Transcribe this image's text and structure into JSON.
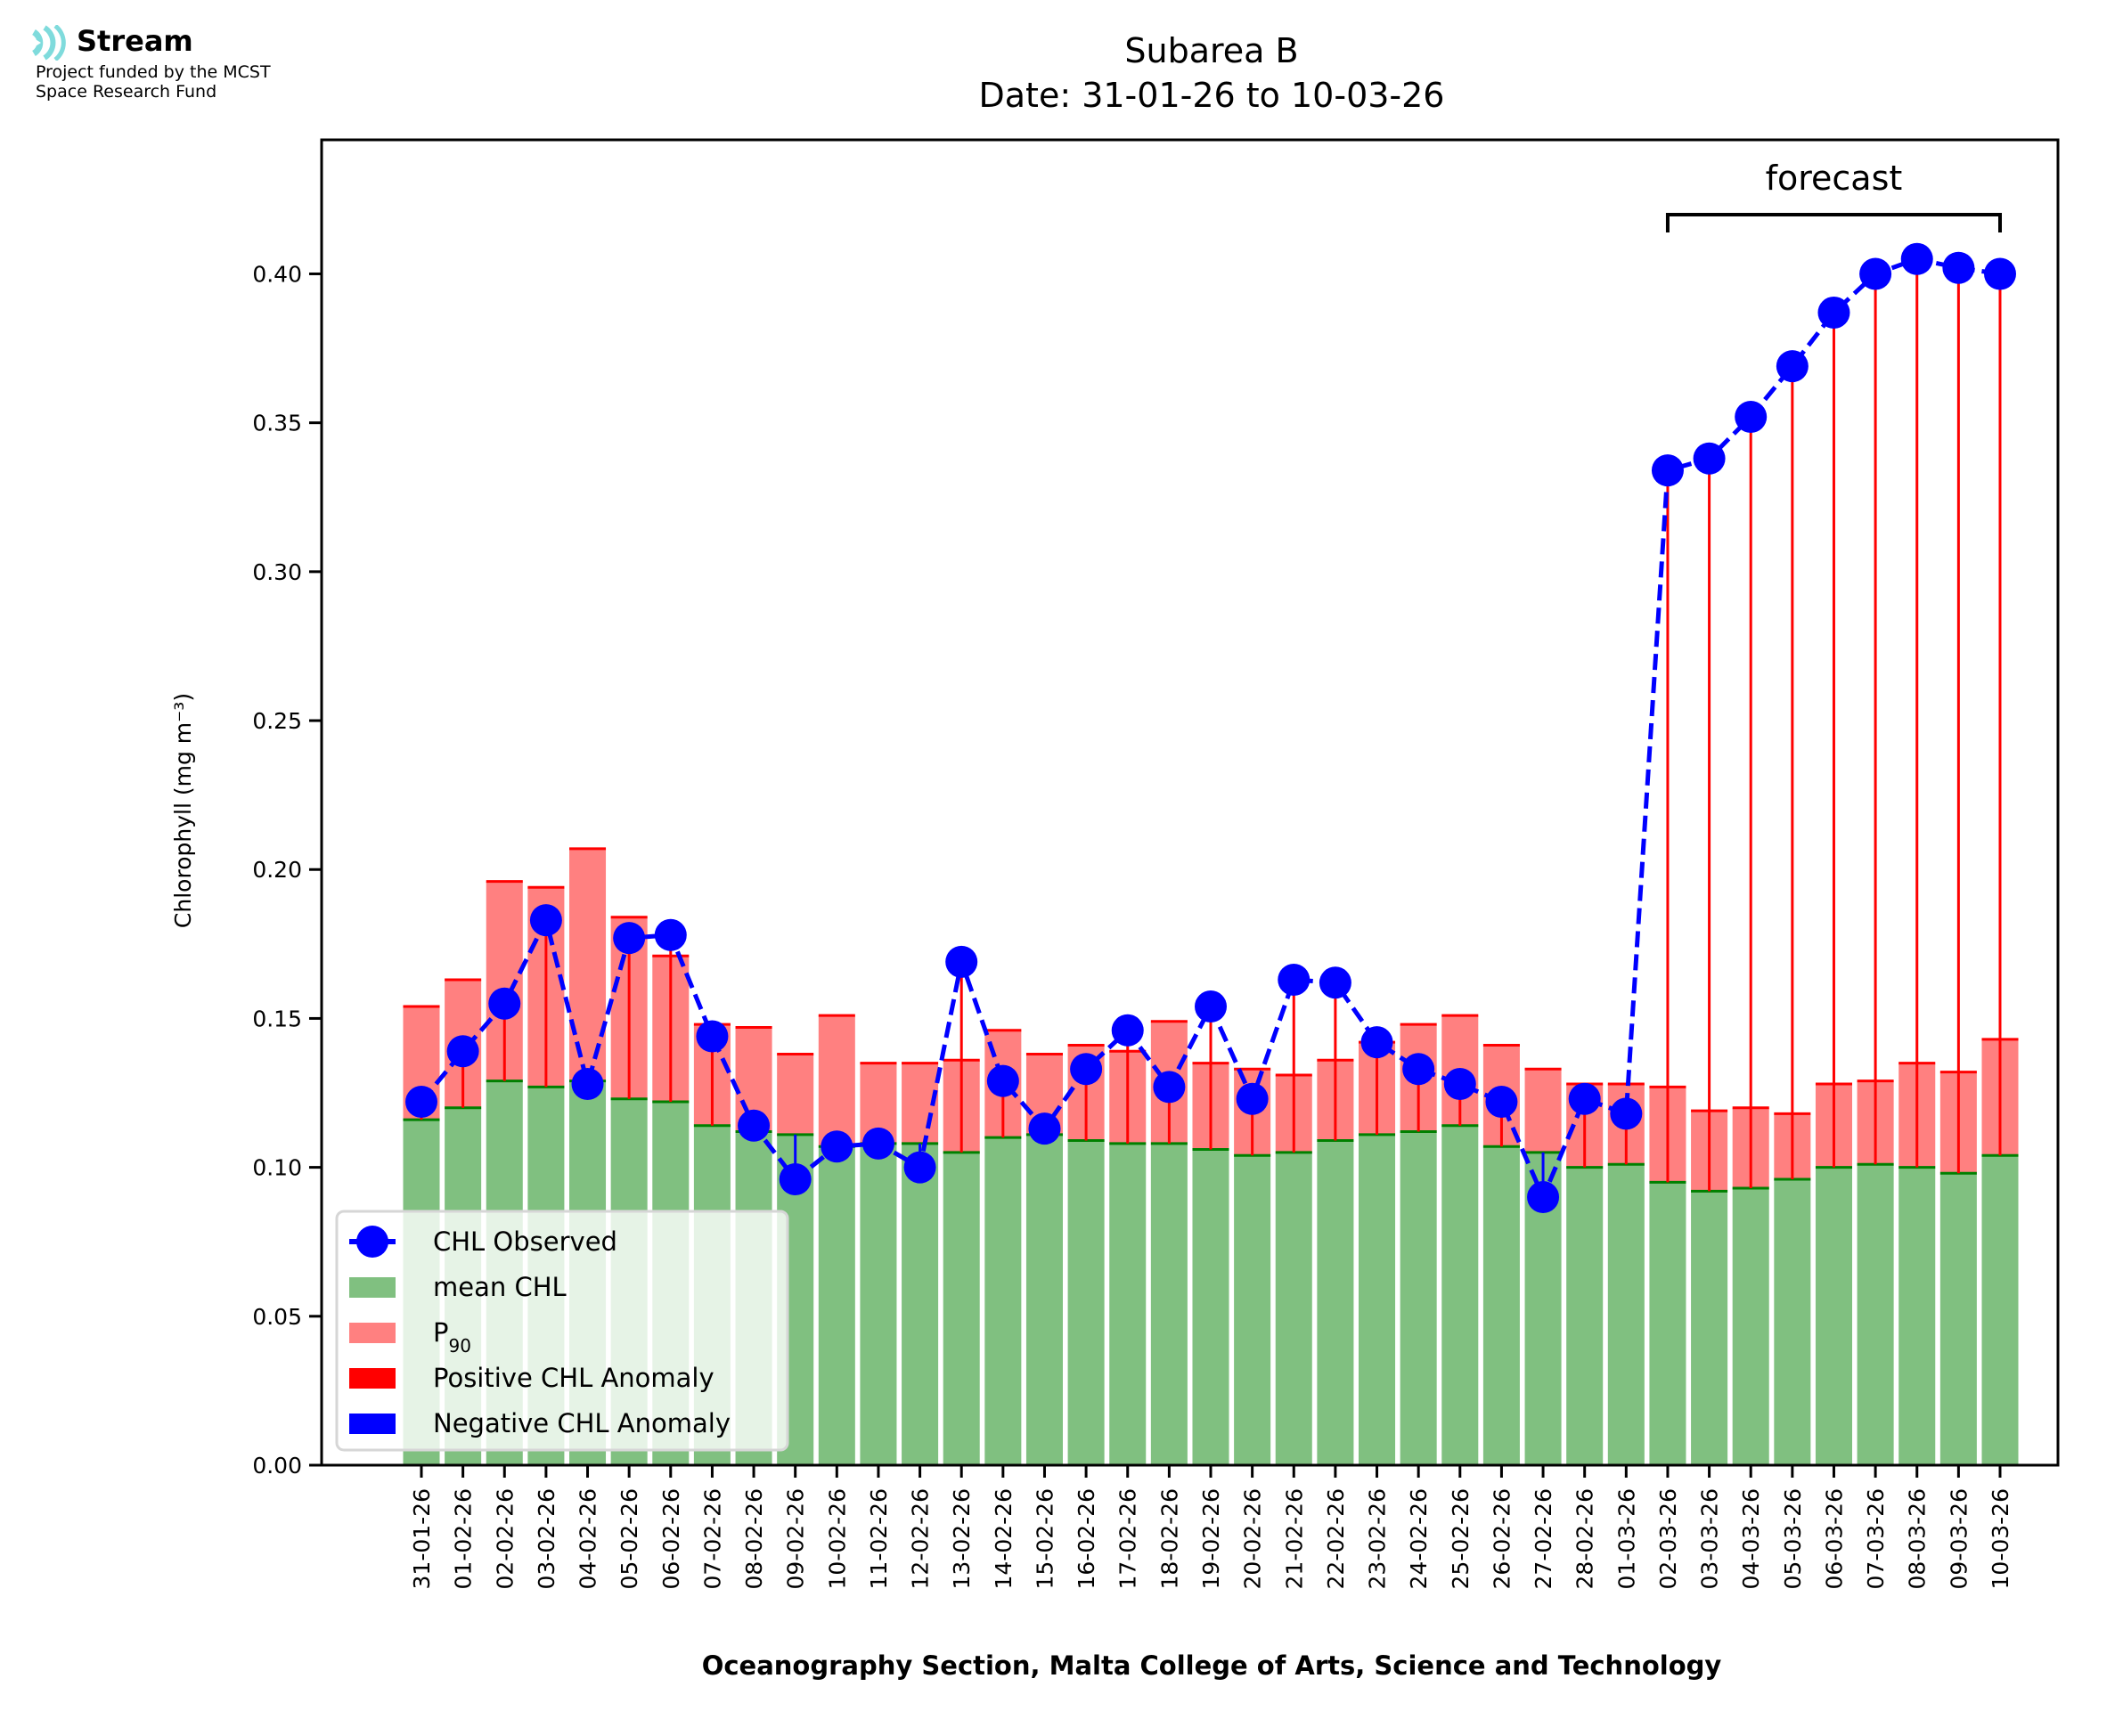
{
  "logo": {
    "icon": "stream-waves-icon",
    "title": "Stream",
    "subtitle_line1": "Project funded by the MCST",
    "subtitle_line2": "Space Research Fund",
    "accent_color": "#7fdbdc"
  },
  "chart_data": {
    "type": "bar",
    "title": "Subarea B",
    "subtitle": "Date: 31-01-26 to 10-03-26",
    "xlabel": "Oceanography Section, Malta College of Arts, Science and Technology",
    "ylabel": "Chlorophyll (mg m⁻³)",
    "ylim": [
      0,
      0.445
    ],
    "yticks": [
      "0.00",
      "0.05",
      "0.10",
      "0.15",
      "0.20",
      "0.25",
      "0.30",
      "0.35",
      "0.40"
    ],
    "ytick_values": [
      0,
      0.05,
      0.1,
      0.15,
      0.2,
      0.25,
      0.3,
      0.35,
      0.4
    ],
    "grid": false,
    "legend_position": "bottom-left",
    "annotation": {
      "text": "forecast",
      "from_category": "02-03-26",
      "to_category": "10-03-26"
    },
    "categories": [
      "31-01-26",
      "01-02-26",
      "02-02-26",
      "03-02-26",
      "04-02-26",
      "05-02-26",
      "06-02-26",
      "07-02-26",
      "08-02-26",
      "09-02-26",
      "10-02-26",
      "11-02-26",
      "12-02-26",
      "13-02-26",
      "14-02-26",
      "15-02-26",
      "16-02-26",
      "17-02-26",
      "18-02-26",
      "19-02-26",
      "20-02-26",
      "21-02-26",
      "22-02-26",
      "23-02-26",
      "24-02-26",
      "25-02-26",
      "26-02-26",
      "27-02-26",
      "28-02-26",
      "01-03-26",
      "02-03-26",
      "03-03-26",
      "04-03-26",
      "05-03-26",
      "06-03-26",
      "07-03-26",
      "08-03-26",
      "09-03-26",
      "10-03-26"
    ],
    "series": [
      {
        "name": "mean CHL",
        "kind": "bar",
        "color": "#80c080",
        "values": [
          0.116,
          0.12,
          0.129,
          0.127,
          0.129,
          0.123,
          0.122,
          0.114,
          0.112,
          0.111,
          0.107,
          0.108,
          0.108,
          0.105,
          0.11,
          0.111,
          0.109,
          0.108,
          0.108,
          0.106,
          0.104,
          0.105,
          0.109,
          0.111,
          0.112,
          0.114,
          0.107,
          0.105,
          0.1,
          0.101,
          0.095,
          0.092,
          0.093,
          0.096,
          0.1,
          0.101,
          0.1,
          0.098,
          0.104
        ]
      },
      {
        "name": "P90",
        "kind": "bar",
        "color": "#ff8080",
        "values": [
          0.154,
          0.163,
          0.196,
          0.194,
          0.207,
          0.184,
          0.171,
          0.148,
          0.147,
          0.138,
          0.151,
          0.135,
          0.135,
          0.136,
          0.146,
          0.138,
          0.141,
          0.139,
          0.149,
          0.135,
          0.133,
          0.131,
          0.136,
          0.142,
          0.148,
          0.151,
          0.141,
          0.133,
          0.128,
          0.128,
          0.127,
          0.119,
          0.12,
          0.118,
          0.128,
          0.129,
          0.135,
          0.132,
          0.143
        ]
      },
      {
        "name": "CHL Observed",
        "kind": "line",
        "color": "#0000ff",
        "linestyle": "dashed",
        "marker": "circle",
        "values": [
          0.122,
          0.139,
          0.155,
          0.183,
          0.128,
          0.177,
          0.178,
          0.144,
          0.114,
          0.096,
          0.107,
          0.108,
          0.1,
          0.169,
          0.129,
          0.113,
          0.133,
          0.146,
          0.127,
          0.154,
          0.123,
          0.163,
          0.162,
          0.142,
          0.133,
          0.128,
          0.122,
          0.09,
          0.123,
          0.118,
          0.334,
          0.338,
          0.352,
          0.369,
          0.387,
          0.4,
          0.405,
          0.402,
          0.4
        ]
      }
    ],
    "anomaly_colors": {
      "positive": "#ff0000",
      "negative": "#0000ff",
      "mean_line": "#008000"
    },
    "legend": [
      {
        "label": "CHL Observed",
        "swatch": "line-marker",
        "color": "#0000ff"
      },
      {
        "label": "mean CHL",
        "swatch": "patch",
        "color": "#80c080"
      },
      {
        "label": "P",
        "sub": "90",
        "swatch": "patch",
        "color": "#ff8080"
      },
      {
        "label": "Positive CHL Anomaly",
        "swatch": "patch",
        "color": "#ff0000"
      },
      {
        "label": "Negative CHL Anomaly",
        "swatch": "patch",
        "color": "#0000ff"
      }
    ]
  }
}
